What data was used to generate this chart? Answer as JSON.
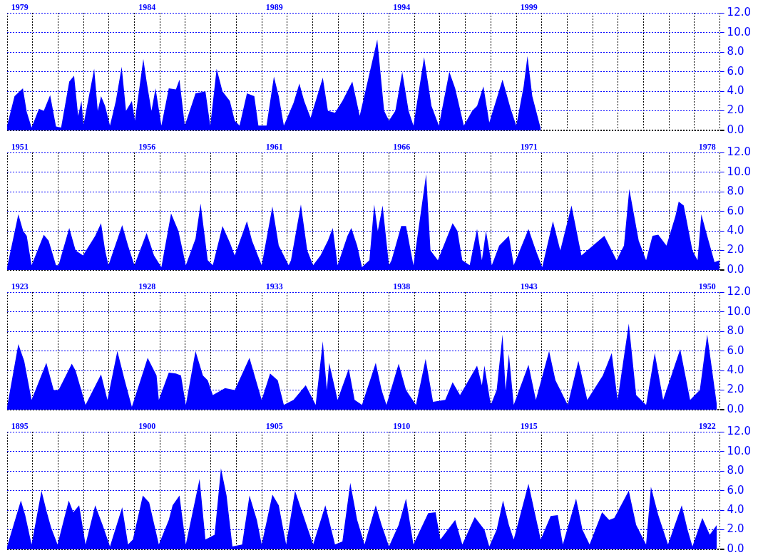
{
  "chart_data": [
    {
      "type": "area",
      "color": "#0000ff",
      "grid": true,
      "xlim": [
        1979,
        2007
      ],
      "ylim": [
        0,
        12
      ],
      "xticks": [
        {
          "value": 1979,
          "label": null
        },
        {
          "value": 1980,
          "label": null
        },
        {
          "value": 1981,
          "label": null
        },
        {
          "value": 1982,
          "label": null
        },
        {
          "value": 1983,
          "label": null
        },
        {
          "value": 1984,
          "label": null
        },
        {
          "value": 1985,
          "label": null
        },
        {
          "value": 1986,
          "label": null
        },
        {
          "value": 1987,
          "label": null
        },
        {
          "value": 1988,
          "label": null
        },
        {
          "value": 1989,
          "label": null
        },
        {
          "value": 1990,
          "label": null
        },
        {
          "value": 1991,
          "label": null
        },
        {
          "value": 1992,
          "label": null
        },
        {
          "value": 1993,
          "label": null
        },
        {
          "value": 1994,
          "label": null
        },
        {
          "value": 1995,
          "label": null
        },
        {
          "value": 1996,
          "label": null
        },
        {
          "value": 1997,
          "label": null
        },
        {
          "value": 1998,
          "label": null
        },
        {
          "value": 1999,
          "label": null
        },
        {
          "value": 2000,
          "label": null
        },
        {
          "value": 2001,
          "label": null
        },
        {
          "value": 2002,
          "label": null
        },
        {
          "value": 2003,
          "label": null
        },
        {
          "value": 2004,
          "label": null
        },
        {
          "value": 2005,
          "label": null
        },
        {
          "value": 2006,
          "label": null
        },
        {
          "value": 2007,
          "label": null
        },
        {
          "value": 1979.5,
          "label": "1979"
        },
        {
          "value": 1984.5,
          "label": "1984"
        },
        {
          "value": 1989.5,
          "label": "1989"
        },
        {
          "value": 1994.5,
          "label": "1994"
        },
        {
          "value": 1999.5,
          "label": "1999"
        }
      ],
      "yticks": [
        {
          "value": 0,
          "label": "0.0"
        },
        {
          "value": 2,
          "label": "2.0"
        },
        {
          "value": 4,
          "label": "4.0"
        },
        {
          "value": 6,
          "label": "6.0"
        },
        {
          "value": 8,
          "label": "8.0"
        },
        {
          "value": 10,
          "label": "10.0"
        },
        {
          "value": 12,
          "label": "12.0"
        }
      ],
      "x": [
        1979.0,
        1979.29,
        1979.62,
        1979.77,
        1979.96,
        1980.25,
        1980.44,
        1980.69,
        1980.92,
        1981.12,
        1981.44,
        1981.63,
        1981.79,
        1981.92,
        1982.0,
        1982.42,
        1982.56,
        1982.69,
        1982.85,
        1983.04,
        1983.27,
        1983.5,
        1983.67,
        1983.9,
        1984.02,
        1984.35,
        1984.48,
        1984.67,
        1984.83,
        1985.06,
        1985.35,
        1985.63,
        1985.77,
        1985.98,
        1986.4,
        1986.79,
        1986.98,
        1987.23,
        1987.46,
        1987.75,
        1987.94,
        1988.13,
        1988.42,
        1988.71,
        1988.87,
        1989.19,
        1989.48,
        1989.67,
        1989.87,
        1990.25,
        1990.48,
        1990.67,
        1990.92,
        1991.4,
        1991.6,
        1991.88,
        1992.17,
        1992.56,
        1992.85,
        1993.54,
        1993.81,
        1994.0,
        1994.25,
        1994.52,
        1994.77,
        1994.96,
        1995.38,
        1995.67,
        1995.96,
        1996.37,
        1996.6,
        1996.94,
        1997.27,
        1997.46,
        1997.71,
        1997.94,
        1998.46,
        1998.77,
        1999.0,
        1999.29,
        1999.44,
        1999.63,
        1999.96
      ],
      "values": [
        0.5,
        3.5,
        4.3,
        1.9,
        0.3,
        2.2,
        2.0,
        3.6,
        0.4,
        0.3,
        5.0,
        5.6,
        1.5,
        3.0,
        0.6,
        6.3,
        2.0,
        3.5,
        2.5,
        0.5,
        3.0,
        6.5,
        2.0,
        3.0,
        1.0,
        7.3,
        5.0,
        2.0,
        4.3,
        0.5,
        4.3,
        4.2,
        5.2,
        0.5,
        3.8,
        4.0,
        0.5,
        6.3,
        4.0,
        3.0,
        1.0,
        0.5,
        3.8,
        3.5,
        0.5,
        0.5,
        5.5,
        3.5,
        0.5,
        2.8,
        4.8,
        3.0,
        1.3,
        5.4,
        2.0,
        1.8,
        3.0,
        5.0,
        1.5,
        9.3,
        2.0,
        1.0,
        2.0,
        6.0,
        2.0,
        0.5,
        7.5,
        2.5,
        0.5,
        6.0,
        4.3,
        0.5,
        2.0,
        2.5,
        4.5,
        0.8,
        5.2,
        2.3,
        0.5,
        4.5,
        7.6,
        3.5,
        0.2
      ]
    },
    {
      "type": "area",
      "color": "#0000ff",
      "grid": true,
      "xlim": [
        1951,
        1979
      ],
      "ylim": [
        0,
        12
      ],
      "xticks": [
        {
          "value": 1951,
          "label": null
        },
        {
          "value": 1952,
          "label": null
        },
        {
          "value": 1953,
          "label": null
        },
        {
          "value": 1954,
          "label": null
        },
        {
          "value": 1955,
          "label": null
        },
        {
          "value": 1956,
          "label": null
        },
        {
          "value": 1957,
          "label": null
        },
        {
          "value": 1958,
          "label": null
        },
        {
          "value": 1959,
          "label": null
        },
        {
          "value": 1960,
          "label": null
        },
        {
          "value": 1961,
          "label": null
        },
        {
          "value": 1962,
          "label": null
        },
        {
          "value": 1963,
          "label": null
        },
        {
          "value": 1964,
          "label": null
        },
        {
          "value": 1965,
          "label": null
        },
        {
          "value": 1966,
          "label": null
        },
        {
          "value": 1967,
          "label": null
        },
        {
          "value": 1968,
          "label": null
        },
        {
          "value": 1969,
          "label": null
        },
        {
          "value": 1970,
          "label": null
        },
        {
          "value": 1971,
          "label": null
        },
        {
          "value": 1972,
          "label": null
        },
        {
          "value": 1973,
          "label": null
        },
        {
          "value": 1974,
          "label": null
        },
        {
          "value": 1975,
          "label": null
        },
        {
          "value": 1976,
          "label": null
        },
        {
          "value": 1977,
          "label": null
        },
        {
          "value": 1978,
          "label": null
        },
        {
          "value": 1979,
          "label": null
        },
        {
          "value": 1951.5,
          "label": "1951"
        },
        {
          "value": 1956.5,
          "label": "1956"
        },
        {
          "value": 1961.5,
          "label": "1961"
        },
        {
          "value": 1966.5,
          "label": "1966"
        },
        {
          "value": 1971.5,
          "label": "1971"
        },
        {
          "value": 1978.5,
          "label": "1978"
        }
      ],
      "yticks": [
        {
          "value": 0,
          "label": "0.0"
        },
        {
          "value": 2,
          "label": "2.0"
        },
        {
          "value": 4,
          "label": "4.0"
        },
        {
          "value": 6,
          "label": "6.0"
        },
        {
          "value": 8,
          "label": "8.0"
        },
        {
          "value": 10,
          "label": "10.0"
        },
        {
          "value": 12,
          "label": "12.0"
        }
      ],
      "x": [
        1951.0,
        1951.44,
        1951.63,
        1951.77,
        1951.96,
        1952.44,
        1952.63,
        1952.92,
        1953.02,
        1953.44,
        1953.69,
        1953.98,
        1954.46,
        1954.69,
        1954.85,
        1954.98,
        1955.52,
        1955.75,
        1956.0,
        1956.48,
        1956.77,
        1957.06,
        1957.44,
        1957.73,
        1958.02,
        1958.4,
        1958.6,
        1958.88,
        1959.08,
        1959.46,
        1959.75,
        1959.94,
        1960.42,
        1960.62,
        1961.0,
        1961.42,
        1961.67,
        1962.06,
        1962.15,
        1962.54,
        1962.79,
        1963.02,
        1963.31,
        1963.6,
        1963.79,
        1963.98,
        1964.37,
        1964.52,
        1964.75,
        1964.94,
        1965.23,
        1965.42,
        1965.56,
        1965.75,
        1966.0,
        1966.1,
        1966.48,
        1966.67,
        1966.96,
        1967.46,
        1967.63,
        1967.92,
        1968.5,
        1968.69,
        1968.88,
        1969.17,
        1969.46,
        1969.65,
        1969.81,
        1970.04,
        1970.33,
        1970.71,
        1970.9,
        1971.48,
        1971.77,
        1972.02,
        1972.44,
        1972.73,
        1973.17,
        1973.56,
        1974.46,
        1974.94,
        1975.23,
        1975.44,
        1975.81,
        1976.1,
        1976.35,
        1976.58,
        1976.9,
        1977.25,
        1977.38,
        1977.58,
        1977.92,
        1978.12,
        1978.27,
        1978.5,
        1978.79,
        1978.98
      ],
      "values": [
        0.3,
        5.7,
        4.0,
        3.5,
        0.5,
        3.6,
        3.0,
        0.5,
        0.5,
        4.3,
        2.0,
        1.5,
        3.5,
        4.8,
        2.0,
        0.5,
        4.6,
        2.5,
        0.5,
        3.8,
        1.5,
        0.3,
        5.8,
        4.0,
        0.5,
        3.2,
        6.8,
        1.0,
        0.5,
        4.5,
        2.8,
        1.5,
        5.0,
        3.0,
        0.5,
        6.5,
        2.5,
        0.5,
        1.0,
        6.7,
        2.0,
        0.5,
        1.5,
        3.0,
        4.3,
        0.5,
        3.5,
        4.3,
        2.5,
        0.3,
        1.0,
        6.7,
        4.0,
        6.6,
        0.5,
        1.0,
        4.5,
        4.5,
        0.5,
        9.8,
        2.0,
        1.0,
        4.8,
        4.0,
        1.0,
        0.5,
        4.2,
        1.0,
        4.0,
        0.5,
        2.5,
        3.5,
        0.5,
        4.2,
        2.0,
        0.3,
        5.0,
        2.0,
        6.6,
        1.5,
        3.5,
        1.0,
        2.5,
        8.3,
        3.0,
        1.0,
        3.5,
        3.6,
        2.5,
        5.5,
        7.0,
        6.6,
        2.0,
        1.0,
        5.7,
        3.5,
        0.8,
        1.0
      ]
    },
    {
      "type": "area",
      "color": "#0000ff",
      "grid": true,
      "xlim": [
        1923,
        1951
      ],
      "ylim": [
        0,
        12
      ],
      "xticks": [
        {
          "value": 1923,
          "label": null
        },
        {
          "value": 1924,
          "label": null
        },
        {
          "value": 1925,
          "label": null
        },
        {
          "value": 1926,
          "label": null
        },
        {
          "value": 1927,
          "label": null
        },
        {
          "value": 1928,
          "label": null
        },
        {
          "value": 1929,
          "label": null
        },
        {
          "value": 1930,
          "label": null
        },
        {
          "value": 1931,
          "label": null
        },
        {
          "value": 1932,
          "label": null
        },
        {
          "value": 1933,
          "label": null
        },
        {
          "value": 1934,
          "label": null
        },
        {
          "value": 1935,
          "label": null
        },
        {
          "value": 1936,
          "label": null
        },
        {
          "value": 1937,
          "label": null
        },
        {
          "value": 1938,
          "label": null
        },
        {
          "value": 1939,
          "label": null
        },
        {
          "value": 1940,
          "label": null
        },
        {
          "value": 1941,
          "label": null
        },
        {
          "value": 1942,
          "label": null
        },
        {
          "value": 1943,
          "label": null
        },
        {
          "value": 1944,
          "label": null
        },
        {
          "value": 1945,
          "label": null
        },
        {
          "value": 1946,
          "label": null
        },
        {
          "value": 1947,
          "label": null
        },
        {
          "value": 1948,
          "label": null
        },
        {
          "value": 1949,
          "label": null
        },
        {
          "value": 1950,
          "label": null
        },
        {
          "value": 1951,
          "label": null
        },
        {
          "value": 1923.5,
          "label": "1923"
        },
        {
          "value": 1928.5,
          "label": "1928"
        },
        {
          "value": 1933.5,
          "label": "1933"
        },
        {
          "value": 1938.5,
          "label": "1938"
        },
        {
          "value": 1943.5,
          "label": "1943"
        },
        {
          "value": 1950.5,
          "label": "1950"
        }
      ],
      "yticks": [
        {
          "value": 0,
          "label": "0.0"
        },
        {
          "value": 2,
          "label": "2.0"
        },
        {
          "value": 4,
          "label": "4.0"
        },
        {
          "value": 6,
          "label": "6.0"
        },
        {
          "value": 8,
          "label": "8.0"
        },
        {
          "value": 10,
          "label": "10.0"
        },
        {
          "value": 12,
          "label": "12.0"
        }
      ],
      "x": [
        1923.0,
        1923.44,
        1923.67,
        1923.96,
        1924.54,
        1924.83,
        1925.02,
        1925.54,
        1925.69,
        1926.08,
        1926.69,
        1926.94,
        1927.33,
        1927.62,
        1927.9,
        1928.52,
        1928.87,
        1928.96,
        1929.35,
        1929.63,
        1929.83,
        1930.02,
        1930.4,
        1930.69,
        1930.88,
        1931.08,
        1931.56,
        1931.94,
        1932.52,
        1933.0,
        1933.33,
        1933.63,
        1933.87,
        1934.25,
        1934.73,
        1935.12,
        1935.4,
        1935.56,
        1935.65,
        1935.98,
        1936.42,
        1936.65,
        1936.94,
        1937.48,
        1937.71,
        1937.9,
        1938.38,
        1938.67,
        1939.06,
        1939.44,
        1939.73,
        1940.21,
        1940.5,
        1940.79,
        1941.46,
        1941.65,
        1941.75,
        1942.0,
        1942.23,
        1942.46,
        1942.58,
        1942.71,
        1942.9,
        1943.48,
        1943.77,
        1944.29,
        1944.54,
        1945.02,
        1945.44,
        1945.79,
        1946.4,
        1946.75,
        1946.98,
        1947.42,
        1947.71,
        1948.1,
        1948.44,
        1948.77,
        1949.44,
        1949.83,
        1950.21,
        1950.5,
        1950.88
      ],
      "values": [
        0.3,
        6.7,
        5.0,
        1.0,
        4.8,
        2.0,
        2.0,
        4.7,
        4.0,
        0.5,
        3.6,
        1.0,
        6.0,
        3.0,
        0.3,
        5.3,
        3.5,
        1.0,
        3.8,
        3.7,
        3.5,
        0.5,
        6.0,
        3.5,
        3.0,
        1.5,
        2.2,
        2.0,
        5.3,
        1.0,
        3.7,
        3.0,
        0.5,
        1.0,
        2.5,
        0.5,
        7.0,
        2.0,
        4.8,
        1.0,
        4.2,
        1.0,
        0.5,
        4.8,
        2.0,
        0.5,
        4.7,
        2.0,
        0.5,
        5.2,
        0.8,
        1.0,
        2.8,
        1.5,
        4.5,
        2.5,
        4.5,
        0.5,
        2.0,
        7.7,
        2.0,
        5.7,
        0.5,
        4.6,
        1.0,
        6.0,
        3.0,
        0.5,
        5.0,
        1.0,
        3.5,
        5.8,
        1.0,
        8.8,
        1.5,
        0.5,
        5.8,
        1.0,
        6.2,
        1.0,
        2.0,
        7.7,
        0.5
      ]
    },
    {
      "type": "area",
      "color": "#0000ff",
      "grid": true,
      "xlim": [
        1895,
        1923
      ],
      "ylim": [
        0,
        12
      ],
      "xticks": [
        {
          "value": 1895,
          "label": null
        },
        {
          "value": 1896,
          "label": null
        },
        {
          "value": 1897,
          "label": null
        },
        {
          "value": 1898,
          "label": null
        },
        {
          "value": 1899,
          "label": null
        },
        {
          "value": 1900,
          "label": null
        },
        {
          "value": 1901,
          "label": null
        },
        {
          "value": 1902,
          "label": null
        },
        {
          "value": 1903,
          "label": null
        },
        {
          "value": 1904,
          "label": null
        },
        {
          "value": 1905,
          "label": null
        },
        {
          "value": 1906,
          "label": null
        },
        {
          "value": 1907,
          "label": null
        },
        {
          "value": 1908,
          "label": null
        },
        {
          "value": 1909,
          "label": null
        },
        {
          "value": 1910,
          "label": null
        },
        {
          "value": 1911,
          "label": null
        },
        {
          "value": 1912,
          "label": null
        },
        {
          "value": 1913,
          "label": null
        },
        {
          "value": 1914,
          "label": null
        },
        {
          "value": 1915,
          "label": null
        },
        {
          "value": 1916,
          "label": null
        },
        {
          "value": 1917,
          "label": null
        },
        {
          "value": 1918,
          "label": null
        },
        {
          "value": 1919,
          "label": null
        },
        {
          "value": 1920,
          "label": null
        },
        {
          "value": 1921,
          "label": null
        },
        {
          "value": 1922,
          "label": null
        },
        {
          "value": 1923,
          "label": null
        },
        {
          "value": 1895.5,
          "label": "1895"
        },
        {
          "value": 1900.5,
          "label": "1900"
        },
        {
          "value": 1905.5,
          "label": "1905"
        },
        {
          "value": 1910.5,
          "label": "1910"
        },
        {
          "value": 1915.5,
          "label": "1915"
        },
        {
          "value": 1922.5,
          "label": "1922"
        }
      ],
      "yticks": [
        {
          "value": 0,
          "label": "0.0"
        },
        {
          "value": 2,
          "label": "2.0"
        },
        {
          "value": 4,
          "label": "4.0"
        },
        {
          "value": 6,
          "label": "6.0"
        },
        {
          "value": 8,
          "label": "8.0"
        },
        {
          "value": 10,
          "label": "10.0"
        },
        {
          "value": 12,
          "label": "12.0"
        }
      ],
      "x": [
        1895.0,
        1895.54,
        1895.71,
        1895.96,
        1896.35,
        1896.54,
        1896.73,
        1896.98,
        1897.42,
        1897.6,
        1897.83,
        1898.08,
        1898.46,
        1898.75,
        1899.04,
        1899.52,
        1899.75,
        1899.94,
        1900.33,
        1900.58,
        1900.96,
        1901.35,
        1901.5,
        1901.77,
        1902.02,
        1902.56,
        1902.79,
        1903.15,
        1903.4,
        1903.62,
        1903.85,
        1904.23,
        1904.52,
        1904.81,
        1905.0,
        1905.42,
        1905.67,
        1905.96,
        1906.31,
        1906.63,
        1907.02,
        1907.5,
        1907.88,
        1908.17,
        1908.48,
        1908.75,
        1909.04,
        1909.48,
        1909.71,
        1910.0,
        1910.38,
        1910.67,
        1910.96,
        1911.54,
        1911.83,
        1912.02,
        1912.31,
        1912.6,
        1912.88,
        1913.37,
        1913.75,
        1913.94,
        1914.23,
        1914.48,
        1914.71,
        1914.9,
        1915.48,
        1915.96,
        1916.35,
        1916.63,
        1916.83,
        1917.35,
        1917.6,
        1917.88,
        1918.37,
        1918.65,
        1918.85,
        1919.42,
        1919.71,
        1920.1,
        1920.29,
        1920.58,
        1920.96,
        1921.5,
        1921.73,
        1921.92,
        1922.31,
        1922.6,
        1922.88
      ],
      "values": [
        0.3,
        5.0,
        3.5,
        0.5,
        6.0,
        4.0,
        2.2,
        0.5,
        5.0,
        3.8,
        4.5,
        0.5,
        4.5,
        2.5,
        0.3,
        4.3,
        0.5,
        1.0,
        5.5,
        4.8,
        0.5,
        3.0,
        4.5,
        5.5,
        0.5,
        7.2,
        1.0,
        1.5,
        8.3,
        5.5,
        0.3,
        0.5,
        5.5,
        3.0,
        0.5,
        5.6,
        4.5,
        0.5,
        6.0,
        3.5,
        0.5,
        4.5,
        0.5,
        0.8,
        6.8,
        3.0,
        0.5,
        4.5,
        2.5,
        0.3,
        2.5,
        5.2,
        0.5,
        3.7,
        3.8,
        1.0,
        2.0,
        3.0,
        0.5,
        3.3,
        2.0,
        0.3,
        2.0,
        5.0,
        2.5,
        1.0,
        6.7,
        1.0,
        3.4,
        3.5,
        0.5,
        5.2,
        2.0,
        0.5,
        3.8,
        3.0,
        3.2,
        6.0,
        2.5,
        0.5,
        6.4,
        3.5,
        0.5,
        4.5,
        2.0,
        0.3,
        3.2,
        1.5,
        2.5
      ]
    }
  ]
}
